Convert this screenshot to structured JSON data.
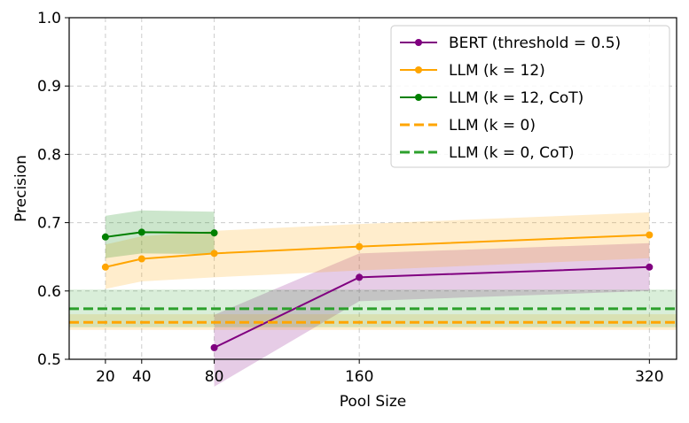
{
  "chart_data": {
    "type": "line",
    "xlabel": "Pool Size",
    "ylabel": "Precision",
    "xticks": [
      20,
      40,
      80,
      160,
      320
    ],
    "yticks": [
      "0.5",
      "0.6",
      "0.7",
      "0.8",
      "0.9",
      "1.0"
    ],
    "xlim": [
      0,
      335
    ],
    "ylim": [
      0.5,
      1.0
    ],
    "grid": true,
    "legend_position": "top-right",
    "series": [
      {
        "name": "BERT (threshold = 0.5)",
        "color": "#800080",
        "style": "solid-marker",
        "x": [
          80,
          160,
          320
        ],
        "y": [
          0.517,
          0.62,
          0.635
        ],
        "lower": [
          0.46,
          0.585,
          0.6
        ],
        "upper": [
          0.565,
          0.655,
          0.67
        ]
      },
      {
        "name": "LLM (k = 12)",
        "color": "#FFA500",
        "style": "solid-marker",
        "x": [
          20,
          40,
          80,
          160,
          320
        ],
        "y": [
          0.635,
          0.647,
          0.655,
          0.665,
          0.682
        ],
        "lower": [
          0.603,
          0.614,
          0.62,
          0.63,
          0.648
        ],
        "upper": [
          0.668,
          0.68,
          0.688,
          0.698,
          0.715
        ]
      },
      {
        "name": "LLM (k = 12, CoT)",
        "color": "#008000",
        "style": "solid-marker",
        "x": [
          20,
          40,
          80
        ],
        "y": [
          0.679,
          0.686,
          0.685
        ],
        "lower": [
          0.648,
          0.655,
          0.654
        ],
        "upper": [
          0.71,
          0.718,
          0.716
        ]
      },
      {
        "name": "LLM (k = 0)",
        "color": "#FFA500",
        "style": "dashed",
        "y": 0.554,
        "lower": 0.543,
        "upper": 0.566
      },
      {
        "name": "LLM (k = 0, CoT)",
        "color": "#2CA02C",
        "style": "dashed",
        "y": 0.574,
        "lower": 0.547,
        "upper": 0.602
      }
    ]
  }
}
